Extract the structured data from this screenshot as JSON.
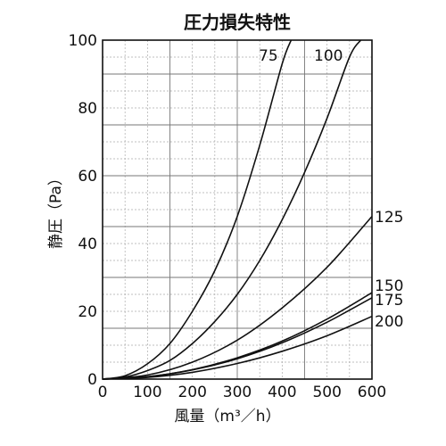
{
  "chart_data": {
    "type": "line",
    "title": "圧力損失特性",
    "xlabel": "風量（m³／h）",
    "ylabel": "静圧（Pa）",
    "xlim": [
      0,
      600
    ],
    "ylim": [
      0,
      100
    ],
    "x_ticks": [
      "0",
      "100",
      "200",
      "300",
      "400",
      "500",
      "600"
    ],
    "y_ticks": [
      "0",
      "20",
      "40",
      "60",
      "80",
      "100"
    ],
    "grid": true,
    "series": [
      {
        "name": "75",
        "x": [
          0,
          50,
          100,
          150,
          200,
          250,
          300,
          350,
          400,
          420
        ],
        "y": [
          0,
          1.0,
          4.5,
          10.5,
          20,
          32,
          48,
          69,
          93,
          100
        ]
      },
      {
        "name": "100",
        "x": [
          0,
          50,
          100,
          150,
          200,
          250,
          300,
          350,
          400,
          450,
          500,
          550,
          575
        ],
        "y": [
          0,
          0.6,
          2.5,
          5.5,
          10.5,
          17,
          25,
          35,
          47,
          61,
          77,
          95,
          100
        ]
      },
      {
        "name": "125",
        "x": [
          0,
          100,
          200,
          300,
          400,
          500,
          600
        ],
        "y": [
          0,
          1.2,
          5.0,
          11.5,
          21,
          33,
          48
        ]
      },
      {
        "name": "150",
        "x": [
          0,
          100,
          200,
          300,
          400,
          500,
          600
        ],
        "y": [
          0,
          0.7,
          2.8,
          6.3,
          11.2,
          17.7,
          25.5
        ]
      },
      {
        "name": "175",
        "x": [
          0,
          100,
          200,
          300,
          400,
          500,
          600
        ],
        "y": [
          0,
          0.7,
          2.7,
          6.0,
          10.7,
          16.8,
          24
        ]
      },
      {
        "name": "200",
        "x": [
          0,
          100,
          200,
          300,
          400,
          500,
          600
        ],
        "y": [
          0,
          0.5,
          2.0,
          4.6,
          8.2,
          12.8,
          18.5
        ]
      }
    ]
  }
}
